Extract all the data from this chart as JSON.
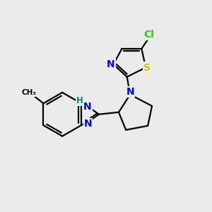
{
  "bg_color": "#ebebeb",
  "bond_color": "#000000",
  "atom_colors": {
    "N": "#0000ee",
    "S": "#cccc00",
    "Cl": "#33cc00",
    "C": "#000000",
    "H": "#008888"
  },
  "bond_lw": 1.6,
  "font_size_atom": 10,
  "font_size_small": 8.5
}
